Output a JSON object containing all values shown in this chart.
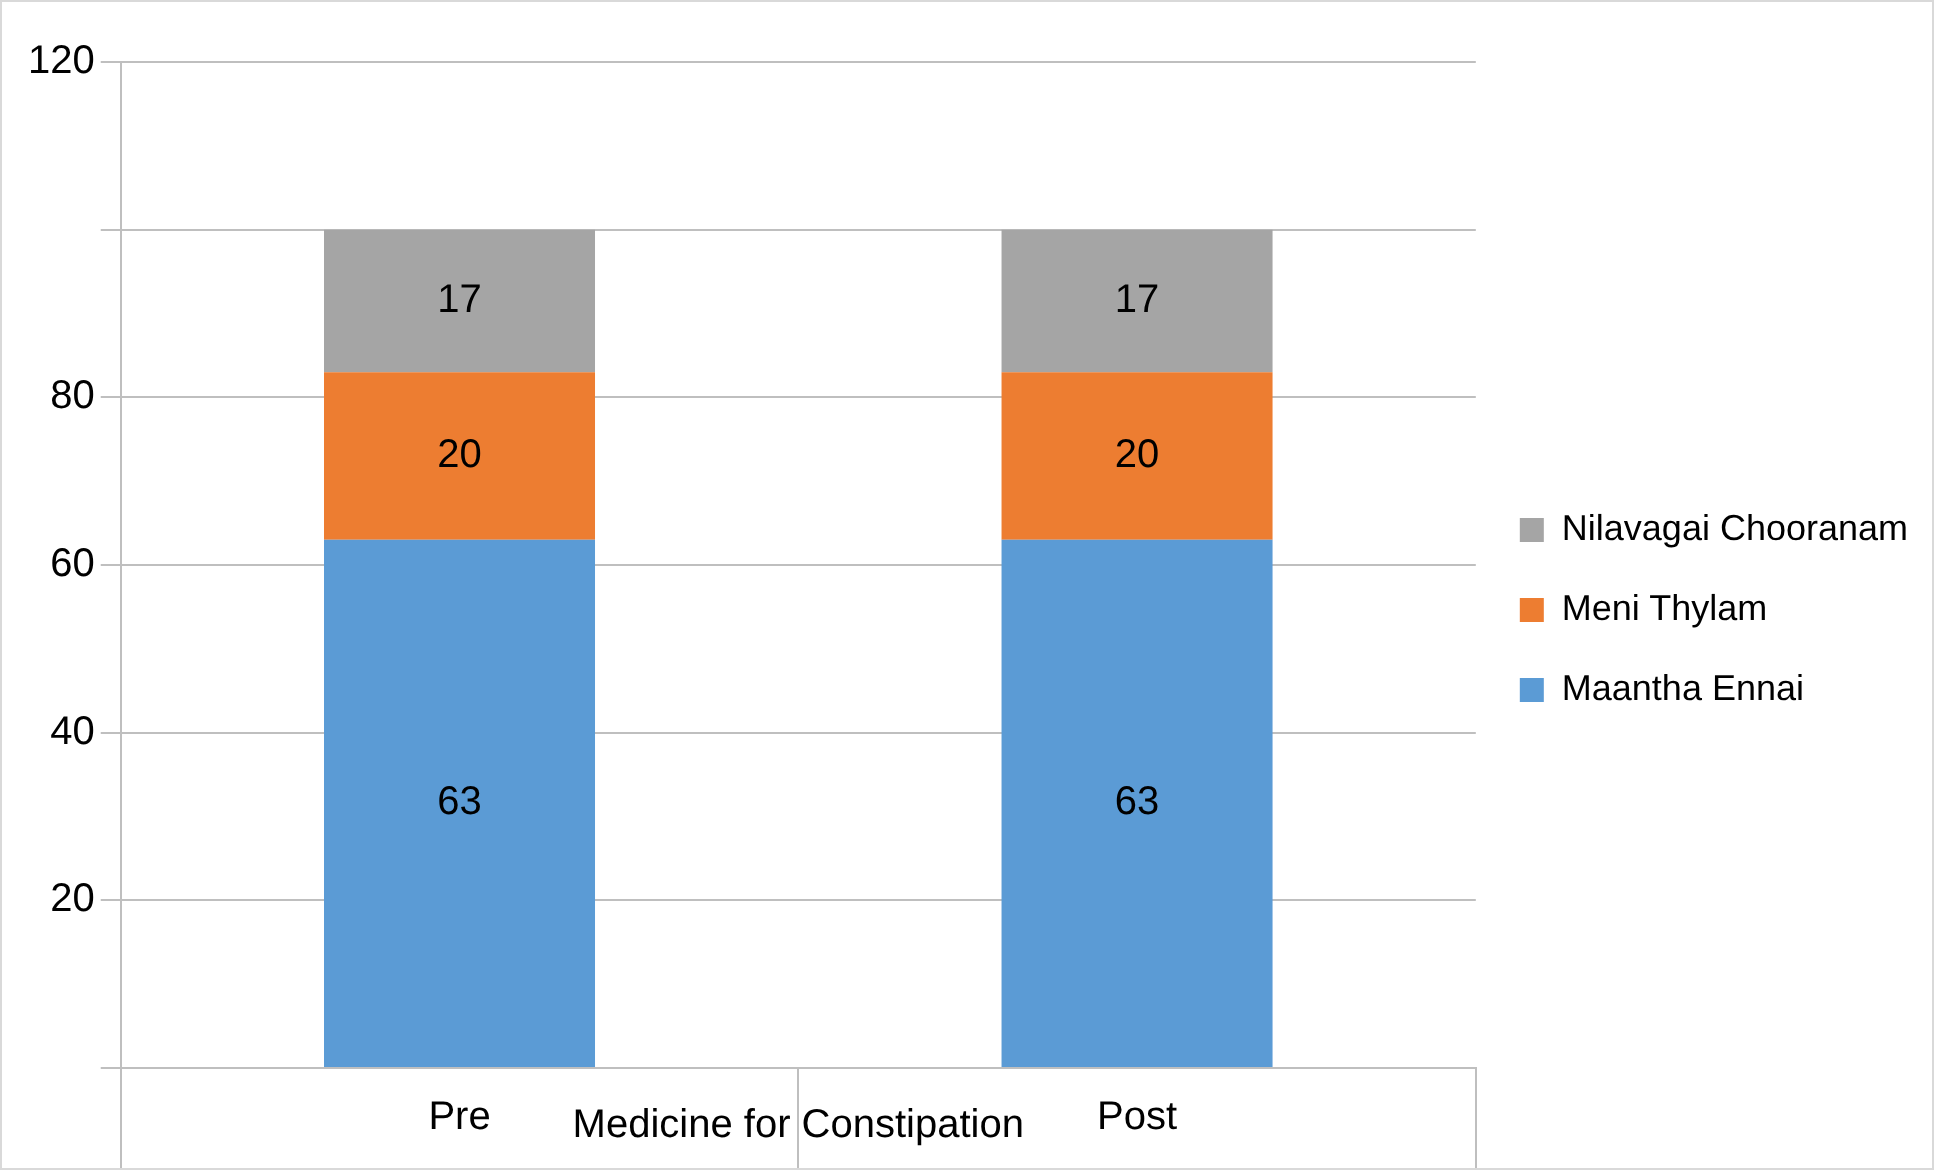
{
  "chart_data": {
    "type": "bar",
    "xlabel": "Medicine for Constipation",
    "categories": [
      "Pre",
      "Post"
    ],
    "series": [
      {
        "name": "Maantha Ennai",
        "color": "#5b9bd5",
        "values": [
          63,
          63
        ]
      },
      {
        "name": "Meni Thylam",
        "color": "#ed7d31",
        "values": [
          20,
          20
        ]
      },
      {
        "name": "Nilavagai Chooranam",
        "color": "#a5a5a5",
        "values": [
          17,
          17
        ]
      }
    ],
    "stacked": true,
    "ylim": [
      0,
      120
    ],
    "yticks": [
      {
        "value": 0,
        "label": null
      },
      20,
      40,
      60,
      80,
      {
        "value": 100,
        "label": null
      },
      120
    ],
    "grid": "y",
    "legend": "right",
    "data_labels": true
  }
}
